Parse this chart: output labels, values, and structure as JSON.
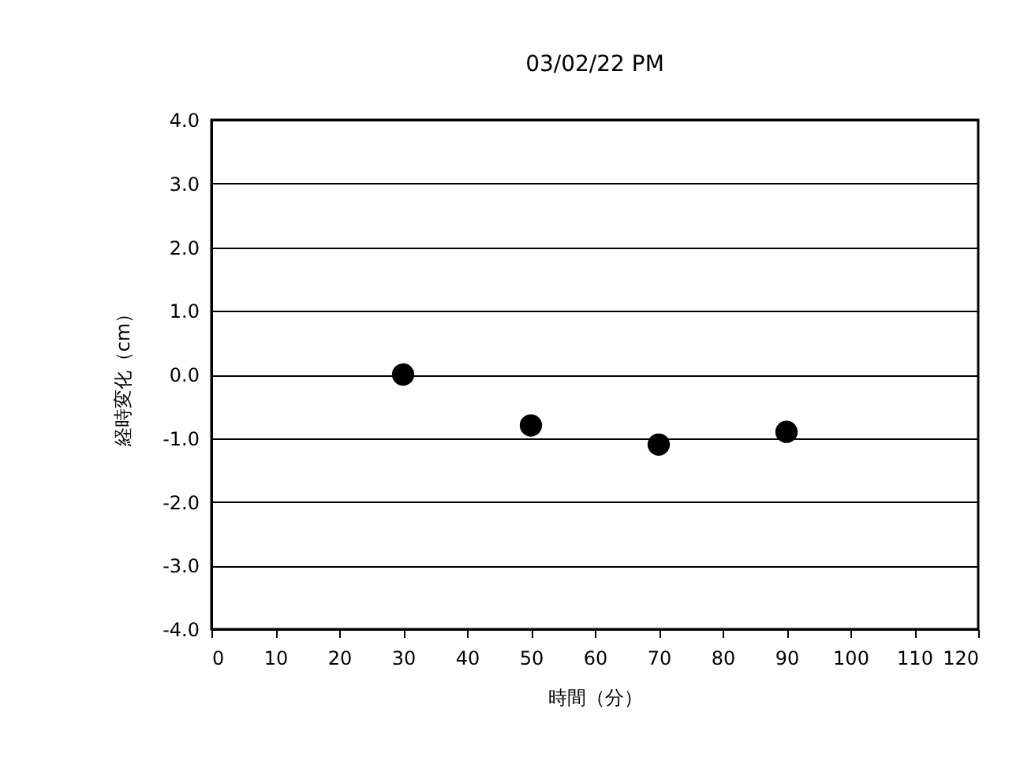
{
  "chart_data": {
    "type": "scatter",
    "title": "03/02/22 PM",
    "xlabel": "時間（分）",
    "ylabel": "経時変化（cm）",
    "x": [
      30,
      50,
      70,
      90
    ],
    "series": [
      {
        "color": "#000000",
        "values": [
          0.0,
          -0.8,
          -1.1,
          -0.9
        ]
      }
    ],
    "xlim": [
      0,
      120
    ],
    "xticks": [
      0,
      10,
      20,
      30,
      40,
      50,
      60,
      70,
      80,
      90,
      100,
      110,
      120
    ],
    "ylim": [
      -4,
      4
    ],
    "yticks": [
      {
        "value": -4,
        "label": "-4.0"
      },
      {
        "value": -3,
        "label": "-3.0"
      },
      {
        "value": -2,
        "label": "-2.0"
      },
      {
        "value": -1,
        "label": "-1.0"
      },
      {
        "value": 0,
        "label": "0.0"
      },
      {
        "value": 1,
        "label": "1.0"
      },
      {
        "value": 2,
        "label": "2.0"
      },
      {
        "value": 3,
        "label": "3.0"
      },
      {
        "value": 4,
        "label": "4.0"
      }
    ],
    "grid": "y",
    "marker": "circle",
    "legend": false
  }
}
